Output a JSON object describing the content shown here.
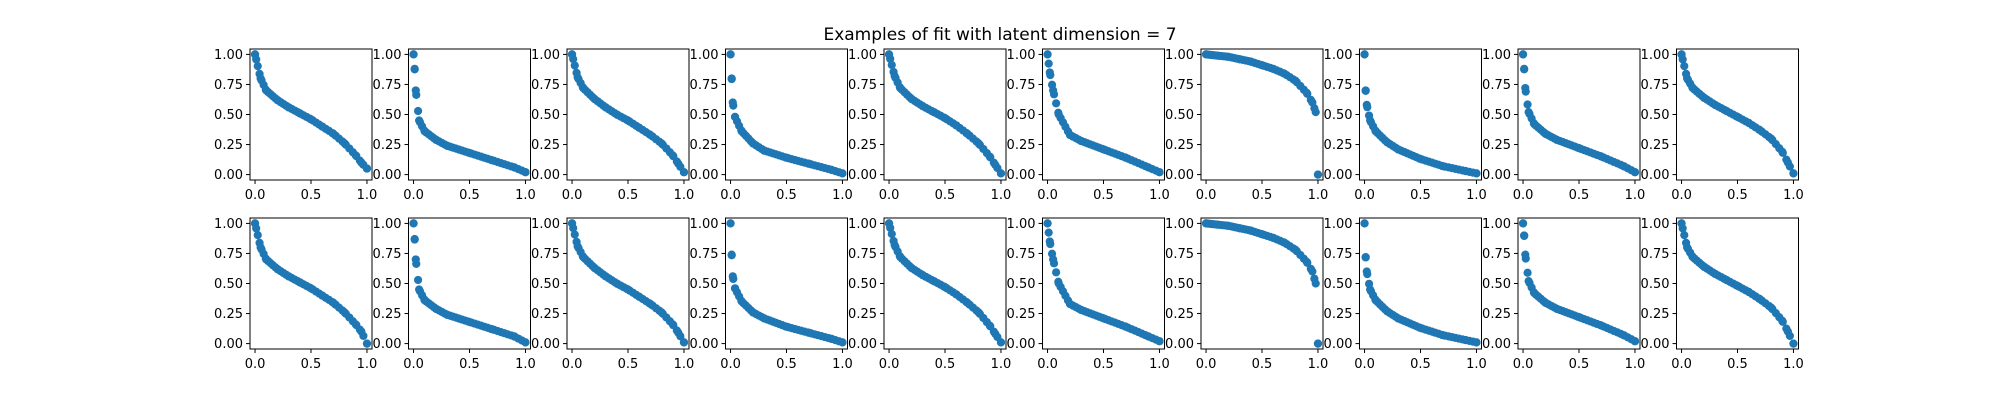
{
  "figure": {
    "title": "Examples of fit with latent dimension = 7",
    "marker_color": "#1f77b4"
  },
  "chart_data": {
    "type": "scatter",
    "layout": "2 rows x 10 columns of subplots",
    "xlim": [
      0,
      1
    ],
    "ylim": [
      0,
      1
    ],
    "xticks": [
      0.0,
      0.5,
      1.0
    ],
    "xtick_labels": [
      "0.0",
      "0.5",
      "1.0"
    ],
    "yticks": [
      0.0,
      0.25,
      0.5,
      0.75,
      1.0
    ],
    "ytick_labels": [
      "0.00",
      "0.25",
      "0.50",
      "0.75",
      "1.00"
    ],
    "grid": false,
    "legend": "none",
    "points_per_curve": 40,
    "curve_shape_note": "each curve decreases from about 1.00 at x = 0 to about 0 at x = 1",
    "panels": [
      {
        "row": 1,
        "col": 1,
        "x": [
          0.0,
          0.05,
          0.1,
          0.2,
          0.3,
          0.4,
          0.5,
          0.6,
          0.7,
          0.8,
          0.9,
          0.95,
          1.0
        ],
        "y": [
          1.0,
          0.8,
          0.7,
          0.62,
          0.56,
          0.51,
          0.46,
          0.4,
          0.34,
          0.26,
          0.16,
          0.1,
          0.05
        ]
      },
      {
        "row": 1,
        "col": 2,
        "x": [
          0.0,
          0.01,
          0.02,
          0.05,
          0.1,
          0.2,
          0.3,
          0.5,
          0.7,
          0.9,
          1.0
        ],
        "y": [
          1.0,
          0.88,
          0.7,
          0.45,
          0.36,
          0.29,
          0.24,
          0.18,
          0.12,
          0.06,
          0.02
        ]
      },
      {
        "row": 1,
        "col": 3,
        "x": [
          0.0,
          0.05,
          0.1,
          0.2,
          0.3,
          0.4,
          0.5,
          0.6,
          0.7,
          0.8,
          0.9,
          0.95,
          1.0
        ],
        "y": [
          1.0,
          0.81,
          0.72,
          0.63,
          0.56,
          0.5,
          0.45,
          0.39,
          0.33,
          0.26,
          0.16,
          0.09,
          0.02
        ]
      },
      {
        "row": 1,
        "col": 4,
        "x": [
          0.0,
          0.01,
          0.02,
          0.04,
          0.1,
          0.2,
          0.3,
          0.5,
          0.7,
          0.9,
          1.0
        ],
        "y": [
          1.0,
          0.8,
          0.6,
          0.48,
          0.36,
          0.26,
          0.2,
          0.14,
          0.09,
          0.04,
          0.01
        ]
      },
      {
        "row": 1,
        "col": 5,
        "x": [
          0.0,
          0.05,
          0.1,
          0.2,
          0.3,
          0.4,
          0.5,
          0.6,
          0.7,
          0.8,
          0.9,
          0.95,
          1.0
        ],
        "y": [
          1.0,
          0.82,
          0.72,
          0.63,
          0.57,
          0.52,
          0.47,
          0.41,
          0.34,
          0.26,
          0.15,
          0.08,
          0.01
        ]
      },
      {
        "row": 1,
        "col": 6,
        "x": [
          0.0,
          0.02,
          0.05,
          0.1,
          0.2,
          0.3,
          0.5,
          0.7,
          0.9,
          1.0
        ],
        "y": [
          1.0,
          0.85,
          0.7,
          0.5,
          0.33,
          0.28,
          0.21,
          0.14,
          0.06,
          0.02
        ]
      },
      {
        "row": 1,
        "col": 7,
        "x": [
          0.0,
          0.1,
          0.2,
          0.3,
          0.4,
          0.5,
          0.6,
          0.7,
          0.8,
          0.9,
          0.95,
          0.98,
          1.0
        ],
        "y": [
          1.0,
          0.99,
          0.98,
          0.96,
          0.94,
          0.91,
          0.88,
          0.84,
          0.78,
          0.68,
          0.6,
          0.52,
          0.0
        ]
      },
      {
        "row": 1,
        "col": 8,
        "x": [
          0.0,
          0.01,
          0.02,
          0.05,
          0.1,
          0.2,
          0.3,
          0.5,
          0.7,
          0.9,
          1.0
        ],
        "y": [
          1.0,
          0.7,
          0.58,
          0.45,
          0.36,
          0.27,
          0.21,
          0.13,
          0.07,
          0.03,
          0.01
        ]
      },
      {
        "row": 1,
        "col": 9,
        "x": [
          0.0,
          0.01,
          0.02,
          0.05,
          0.1,
          0.2,
          0.3,
          0.5,
          0.7,
          0.9,
          1.0
        ],
        "y": [
          1.0,
          0.88,
          0.72,
          0.52,
          0.42,
          0.34,
          0.29,
          0.22,
          0.15,
          0.07,
          0.02
        ]
      },
      {
        "row": 1,
        "col": 10,
        "x": [
          0.0,
          0.05,
          0.1,
          0.2,
          0.3,
          0.4,
          0.5,
          0.6,
          0.7,
          0.8,
          0.9,
          0.95,
          1.0
        ],
        "y": [
          1.0,
          0.8,
          0.72,
          0.64,
          0.58,
          0.53,
          0.48,
          0.43,
          0.37,
          0.3,
          0.19,
          0.1,
          0.01
        ]
      },
      {
        "row": 2,
        "col": 1,
        "x": [
          0.0,
          0.05,
          0.1,
          0.2,
          0.3,
          0.4,
          0.5,
          0.6,
          0.7,
          0.8,
          0.9,
          0.95,
          1.0
        ],
        "y": [
          1.0,
          0.8,
          0.7,
          0.62,
          0.56,
          0.51,
          0.46,
          0.4,
          0.34,
          0.26,
          0.16,
          0.1,
          0.0
        ]
      },
      {
        "row": 2,
        "col": 2,
        "x": [
          0.0,
          0.01,
          0.02,
          0.05,
          0.1,
          0.2,
          0.3,
          0.5,
          0.7,
          0.9,
          1.0
        ],
        "y": [
          1.0,
          0.87,
          0.7,
          0.45,
          0.36,
          0.29,
          0.24,
          0.18,
          0.12,
          0.06,
          0.01
        ]
      },
      {
        "row": 2,
        "col": 3,
        "x": [
          0.0,
          0.05,
          0.1,
          0.2,
          0.3,
          0.4,
          0.5,
          0.6,
          0.7,
          0.8,
          0.9,
          0.95,
          1.0
        ],
        "y": [
          1.0,
          0.81,
          0.72,
          0.63,
          0.56,
          0.5,
          0.45,
          0.39,
          0.33,
          0.26,
          0.16,
          0.09,
          0.01
        ]
      },
      {
        "row": 2,
        "col": 4,
        "x": [
          0.0,
          0.01,
          0.02,
          0.04,
          0.1,
          0.2,
          0.3,
          0.5,
          0.7,
          0.9,
          1.0
        ],
        "y": [
          1.0,
          0.74,
          0.56,
          0.46,
          0.35,
          0.26,
          0.21,
          0.14,
          0.09,
          0.04,
          0.01
        ]
      },
      {
        "row": 2,
        "col": 5,
        "x": [
          0.0,
          0.05,
          0.1,
          0.2,
          0.3,
          0.4,
          0.5,
          0.6,
          0.7,
          0.8,
          0.9,
          0.95,
          1.0
        ],
        "y": [
          1.0,
          0.82,
          0.72,
          0.63,
          0.57,
          0.52,
          0.47,
          0.41,
          0.34,
          0.26,
          0.15,
          0.08,
          0.01
        ]
      },
      {
        "row": 2,
        "col": 6,
        "x": [
          0.0,
          0.02,
          0.05,
          0.1,
          0.2,
          0.3,
          0.5,
          0.7,
          0.9,
          1.0
        ],
        "y": [
          1.0,
          0.85,
          0.7,
          0.5,
          0.33,
          0.28,
          0.21,
          0.14,
          0.06,
          0.02
        ]
      },
      {
        "row": 2,
        "col": 7,
        "x": [
          0.0,
          0.1,
          0.2,
          0.3,
          0.4,
          0.5,
          0.6,
          0.7,
          0.8,
          0.9,
          0.95,
          0.98,
          1.0
        ],
        "y": [
          1.0,
          0.99,
          0.98,
          0.96,
          0.94,
          0.91,
          0.88,
          0.84,
          0.78,
          0.68,
          0.6,
          0.5,
          0.0
        ]
      },
      {
        "row": 2,
        "col": 8,
        "x": [
          0.0,
          0.01,
          0.02,
          0.05,
          0.1,
          0.2,
          0.3,
          0.5,
          0.7,
          0.9,
          1.0
        ],
        "y": [
          1.0,
          0.72,
          0.6,
          0.45,
          0.36,
          0.27,
          0.21,
          0.13,
          0.07,
          0.03,
          0.01
        ]
      },
      {
        "row": 2,
        "col": 9,
        "x": [
          0.0,
          0.01,
          0.02,
          0.05,
          0.1,
          0.2,
          0.3,
          0.5,
          0.7,
          0.9,
          1.0
        ],
        "y": [
          1.0,
          0.9,
          0.74,
          0.52,
          0.42,
          0.34,
          0.29,
          0.22,
          0.15,
          0.07,
          0.02
        ]
      },
      {
        "row": 2,
        "col": 10,
        "x": [
          0.0,
          0.05,
          0.1,
          0.2,
          0.3,
          0.4,
          0.5,
          0.6,
          0.7,
          0.8,
          0.9,
          0.95,
          1.0
        ],
        "y": [
          1.0,
          0.8,
          0.72,
          0.64,
          0.58,
          0.53,
          0.48,
          0.43,
          0.37,
          0.3,
          0.19,
          0.1,
          0.0
        ]
      }
    ]
  }
}
